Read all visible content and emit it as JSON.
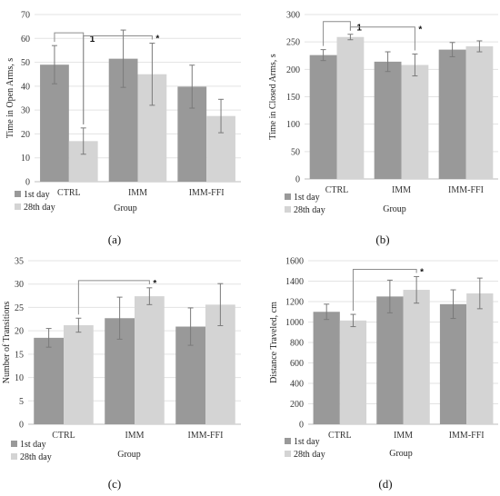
{
  "chart_data": [
    {
      "panel": "(a)",
      "type": "bar",
      "ylabel": "Time in Open Arms, s",
      "xlabel": "Group",
      "ylim": [
        0,
        70
      ],
      "yticks": [
        0,
        10,
        20,
        30,
        40,
        50,
        60,
        70
      ],
      "categories": [
        "CTRL",
        "IMM",
        "IMM-FFI"
      ],
      "series": [
        {
          "name": "1st day",
          "color": "#999999",
          "values": [
            49.0,
            51.5,
            39.8
          ],
          "errors": [
            8.0,
            12.0,
            9.0
          ]
        },
        {
          "name": "28th day",
          "color": "#d4d4d4",
          "values": [
            17.0,
            45.0,
            27.5
          ],
          "errors": [
            5.5,
            13.0,
            7.0
          ]
        }
      ],
      "brackets": [
        {
          "from": [
            0,
            0
          ],
          "to": [
            0,
            1
          ],
          "label": "1"
        },
        {
          "from": [
            0,
            1
          ],
          "to": [
            1,
            1
          ],
          "label": "*"
        }
      ]
    },
    {
      "panel": "(b)",
      "type": "bar",
      "ylabel": "Time in Closed Arms, s",
      "xlabel": "Group",
      "ylim": [
        0,
        300
      ],
      "yticks": [
        0,
        50,
        100,
        150,
        200,
        250,
        300
      ],
      "categories": [
        "CTRL",
        "IMM",
        "IMM-FFI"
      ],
      "series": [
        {
          "name": "1st day",
          "color": "#999999",
          "values": [
            226,
            214,
            236
          ],
          "errors": [
            10,
            18,
            13
          ]
        },
        {
          "name": "28th day",
          "color": "#d4d4d4",
          "values": [
            259,
            208,
            242
          ],
          "errors": [
            5,
            20,
            10
          ]
        }
      ],
      "brackets": [
        {
          "from": [
            0,
            0
          ],
          "to": [
            0,
            1
          ],
          "label": "1"
        },
        {
          "from": [
            0,
            1
          ],
          "to": [
            1,
            1
          ],
          "label": "*"
        }
      ]
    },
    {
      "panel": "(c)",
      "type": "bar",
      "ylabel": "Number of Transitions",
      "xlabel": "Group",
      "ylim": [
        0,
        35
      ],
      "yticks": [
        0,
        5,
        10,
        15,
        20,
        25,
        30,
        35
      ],
      "categories": [
        "CTRL",
        "IMM",
        "IMM-FFI"
      ],
      "series": [
        {
          "name": "1st day",
          "color": "#999999",
          "values": [
            18.5,
            22.7,
            20.9
          ],
          "errors": [
            2.0,
            4.5,
            4.0
          ]
        },
        {
          "name": "28th day",
          "color": "#d4d4d4",
          "values": [
            21.2,
            27.4,
            25.6
          ],
          "errors": [
            1.5,
            1.8,
            4.5
          ]
        }
      ],
      "brackets": [
        {
          "from": [
            0,
            1
          ],
          "to": [
            1,
            1
          ],
          "label": "*"
        }
      ]
    },
    {
      "panel": "(d)",
      "type": "bar",
      "ylabel": "Distance Traveled, cm",
      "xlabel": "Group",
      "ylim": [
        0,
        1600
      ],
      "yticks": [
        0,
        200,
        400,
        600,
        800,
        1000,
        1200,
        1400,
        1600
      ],
      "categories": [
        "CTRL",
        "IMM",
        "IMM-FFI"
      ],
      "series": [
        {
          "name": "1st day",
          "color": "#999999",
          "values": [
            1100,
            1250,
            1175
          ],
          "errors": [
            75,
            160,
            140
          ]
        },
        {
          "name": "28th day",
          "color": "#d4d4d4",
          "values": [
            1015,
            1315,
            1280
          ],
          "errors": [
            60,
            130,
            150
          ]
        }
      ],
      "brackets": [
        {
          "from": [
            0,
            1
          ],
          "to": [
            1,
            1
          ],
          "label": "*"
        }
      ]
    }
  ]
}
